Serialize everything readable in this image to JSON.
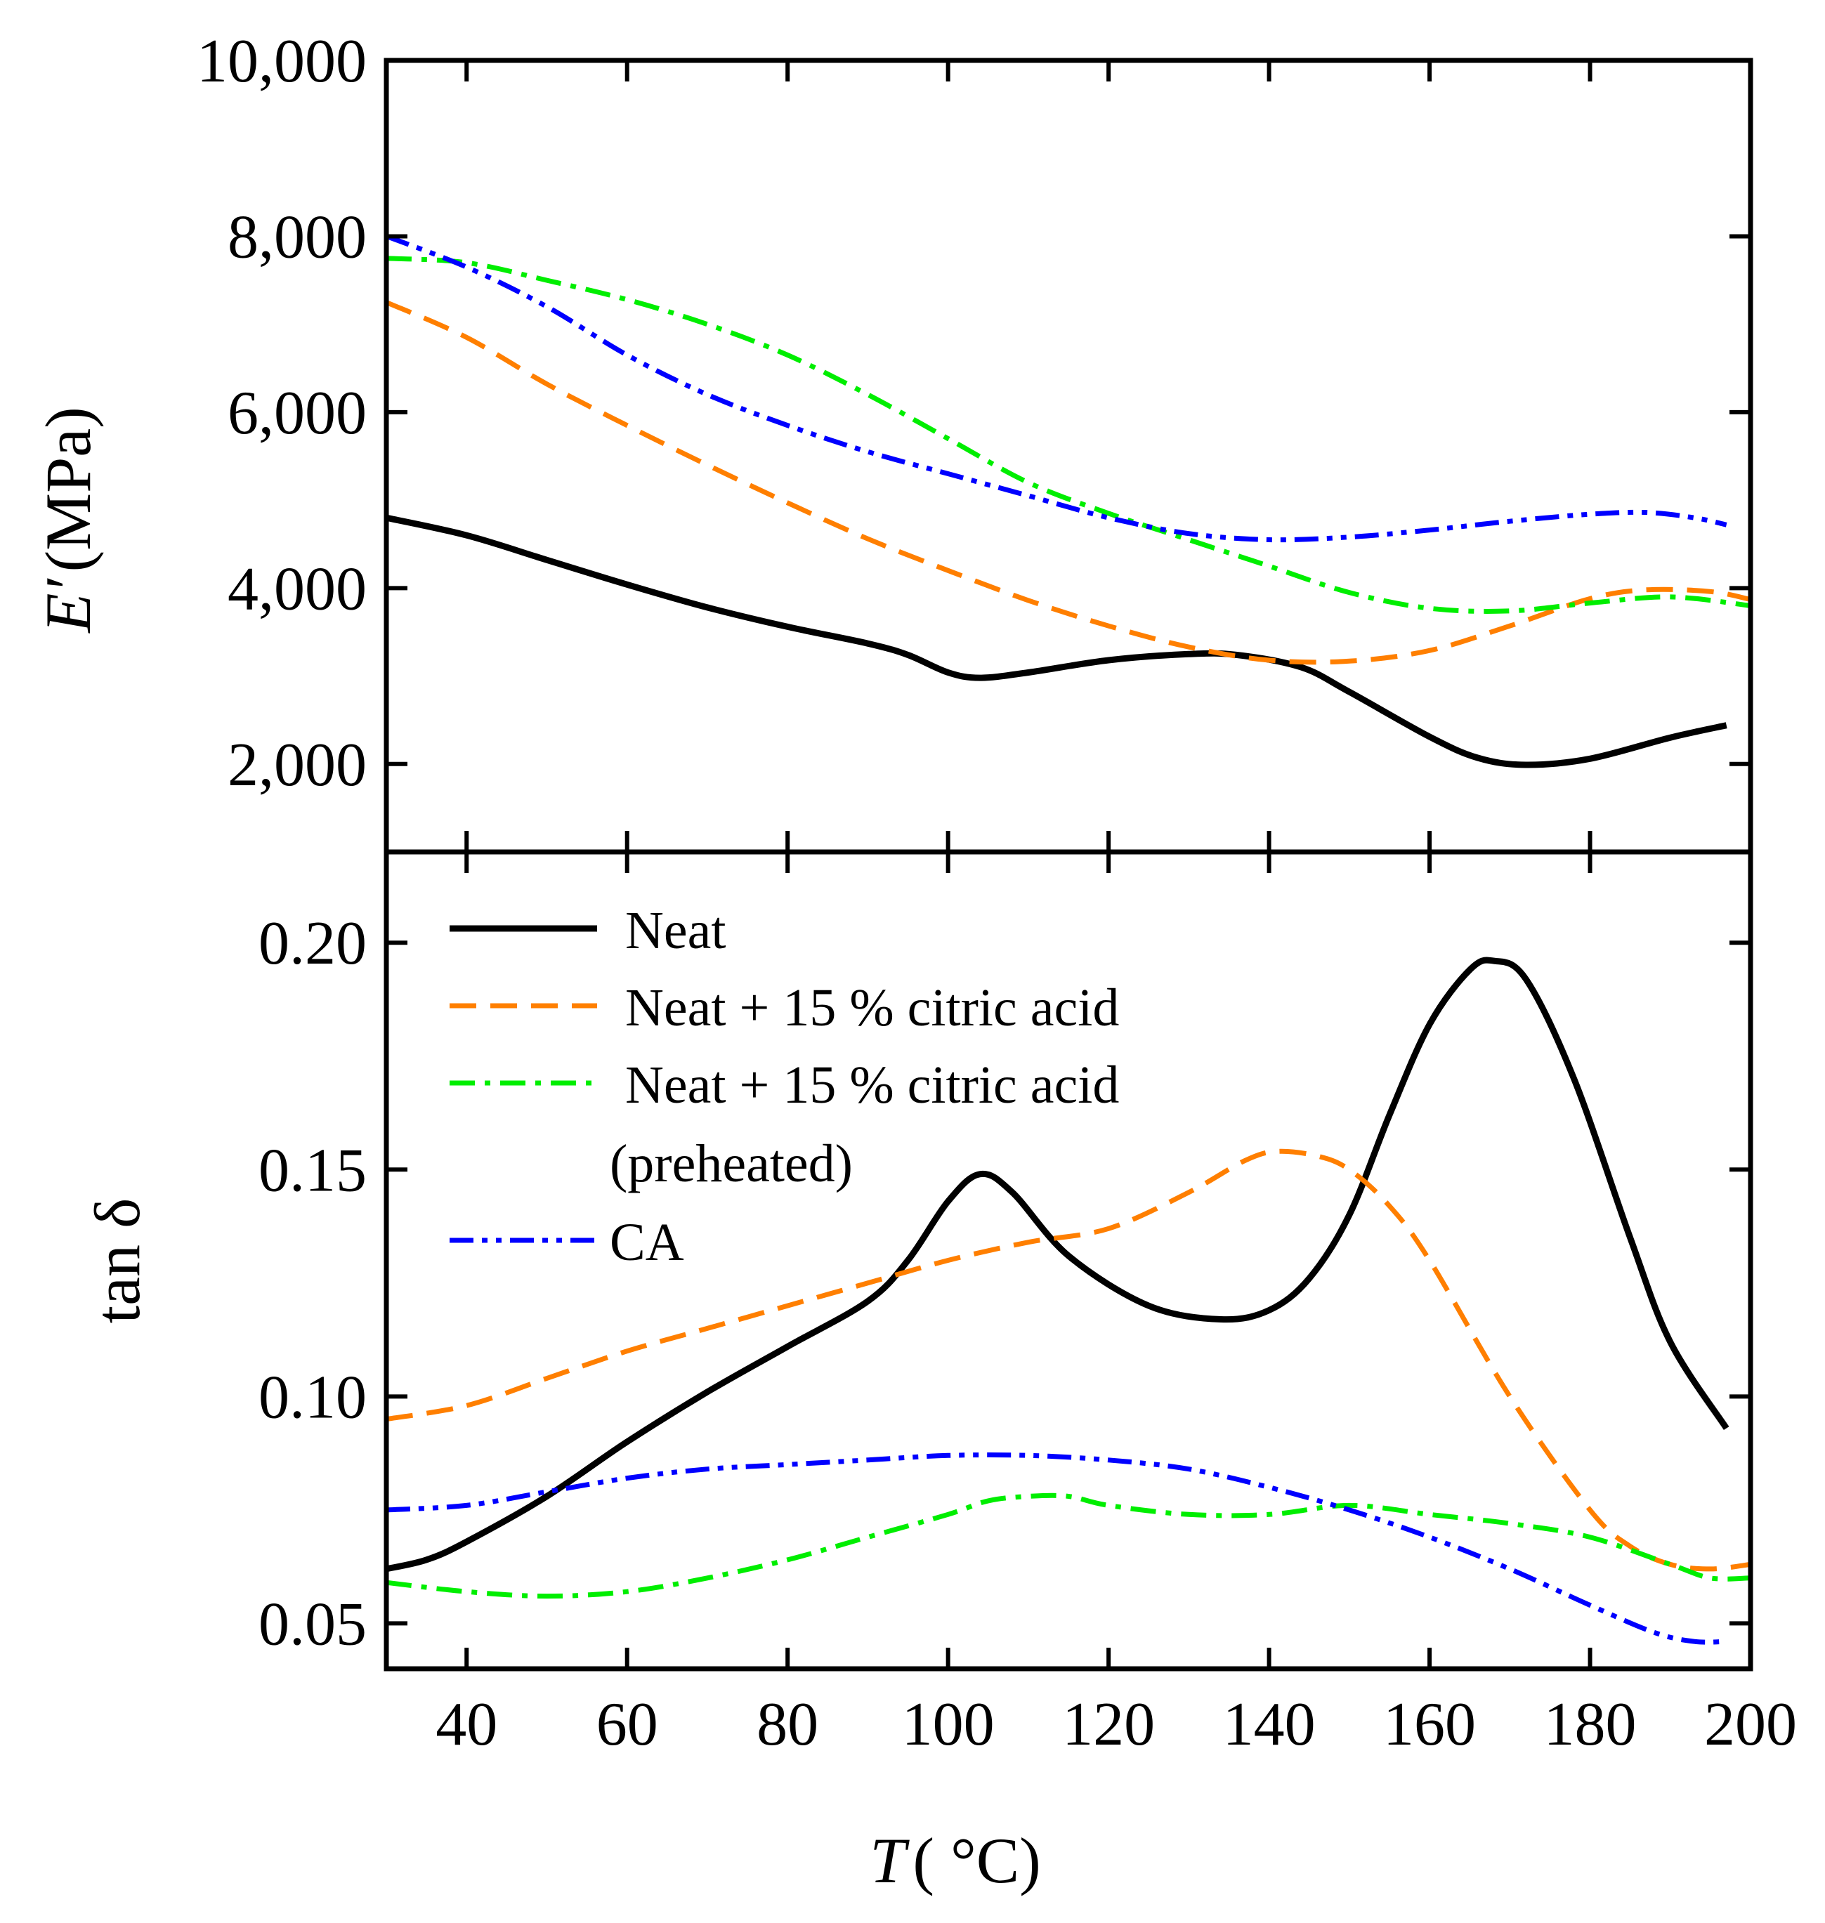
{
  "chart_data": [
    {
      "type": "line",
      "panel": "top",
      "ylabel": "E′ (MPa)",
      "ylabel_symbol": "E′",
      "ylabel_unit": "(MPa)",
      "xlim": [
        30,
        200
      ],
      "ylim": [
        1000,
        10000
      ],
      "yticks": [
        2000,
        4000,
        6000,
        8000,
        10000
      ],
      "ytick_labels": [
        "2,000",
        "4,000",
        "6,000",
        "8,000",
        "10,000"
      ],
      "grid": false,
      "series": [
        {
          "name": "Neat",
          "color": "#000000",
          "style": "solid",
          "x": [
            30,
            40,
            50,
            60,
            70,
            80,
            90,
            95,
            100,
            104,
            110,
            120,
            130,
            136,
            144,
            150,
            160,
            166,
            172,
            180,
            190,
            197
          ],
          "y": [
            4800,
            4600,
            4320,
            4040,
            3780,
            3560,
            3370,
            3240,
            3040,
            2980,
            3040,
            3180,
            3250,
            3240,
            3100,
            2820,
            2310,
            2070,
            1990,
            2060,
            2300,
            2440
          ]
        },
        {
          "name": "Neat + 15 % citric acid",
          "color": "#ff7f00",
          "style": "dashed",
          "x": [
            30,
            40,
            50,
            60,
            70,
            80,
            90,
            100,
            110,
            120,
            130,
            140,
            150,
            160,
            170,
            180,
            187,
            195,
            200
          ],
          "y": [
            7250,
            6850,
            6320,
            5850,
            5400,
            4970,
            4560,
            4200,
            3860,
            3570,
            3330,
            3180,
            3170,
            3290,
            3570,
            3880,
            3980,
            3960,
            3870
          ]
        },
        {
          "name": "Neat + 15 % citric acid (preheated)",
          "color": "#00ee00",
          "style": "dash-dot",
          "x": [
            30,
            40,
            50,
            60,
            70,
            80,
            90,
            100,
            110,
            120,
            130,
            140,
            150,
            160,
            170,
            180,
            190,
            200
          ],
          "y": [
            7750,
            7700,
            7500,
            7280,
            7000,
            6650,
            6200,
            5700,
            5200,
            4850,
            4550,
            4250,
            3950,
            3770,
            3740,
            3830,
            3900,
            3800
          ]
        },
        {
          "name": "CA",
          "color": "#0000ff",
          "style": "dash-dot-dot",
          "x": [
            30,
            40,
            50,
            60,
            70,
            80,
            90,
            100,
            110,
            120,
            130,
            140,
            150,
            160,
            170,
            180,
            187,
            193,
            197
          ],
          "y": [
            8000,
            7650,
            7200,
            6650,
            6200,
            5850,
            5550,
            5300,
            5050,
            4800,
            4620,
            4550,
            4580,
            4660,
            4760,
            4840,
            4860,
            4800,
            4720
          ]
        }
      ]
    },
    {
      "type": "line",
      "panel": "bottom",
      "xlabel": "T ( °C)",
      "xlabel_symbol": "T",
      "xlabel_unit": "( °C)",
      "ylabel": "tan δ",
      "xlim": [
        30,
        200
      ],
      "ylim": [
        0.04,
        0.22
      ],
      "xticks": [
        40,
        60,
        80,
        100,
        120,
        140,
        160,
        180,
        200
      ],
      "xtick_labels": [
        "40",
        "60",
        "80",
        "100",
        "120",
        "140",
        "160",
        "180",
        "200"
      ],
      "yticks": [
        0.05,
        0.1,
        0.15,
        0.2
      ],
      "ytick_labels": [
        "0.05",
        "0.10",
        "0.15",
        "0.20"
      ],
      "grid": false,
      "legend": {
        "position": "top-left",
        "entries": [
          {
            "label": "Neat",
            "style": "solid",
            "color": "#000000"
          },
          {
            "label": "Neat + 15 % citric acid",
            "style": "dashed",
            "color": "#ff7f00"
          },
          {
            "label": "Neat + 15 % citric acid",
            "label_line2": "(preheated)",
            "style": "dash-dot",
            "color": "#00ee00"
          },
          {
            "label": "CA",
            "style": "dash-dot-dot",
            "color": "#0000ff"
          }
        ]
      },
      "series": [
        {
          "name": "Neat",
          "color": "#000000",
          "style": "solid",
          "x": [
            30,
            35,
            40,
            50,
            60,
            70,
            80,
            90,
            95,
            100,
            104,
            108,
            115,
            125,
            134,
            140,
            145,
            150,
            155,
            160,
            165,
            168,
            172,
            178,
            185,
            190,
            197
          ],
          "y": [
            0.062,
            0.064,
            0.068,
            0.078,
            0.09,
            0.101,
            0.111,
            0.121,
            0.13,
            0.143,
            0.149,
            0.145,
            0.131,
            0.12,
            0.117,
            0.119,
            0.126,
            0.14,
            0.162,
            0.182,
            0.194,
            0.196,
            0.192,
            0.17,
            0.135,
            0.112,
            0.093
          ]
        },
        {
          "name": "Neat + 15 % citric acid",
          "color": "#ff7f00",
          "style": "dashed",
          "x": [
            30,
            40,
            50,
            60,
            70,
            80,
            90,
            100,
            110,
            120,
            130,
            137,
            141,
            146,
            150,
            155,
            160,
            170,
            180,
            185,
            190,
            195,
            200
          ],
          "y": [
            0.095,
            0.098,
            0.104,
            0.11,
            0.115,
            0.12,
            0.125,
            0.13,
            0.134,
            0.137,
            0.145,
            0.152,
            0.154,
            0.153,
            0.15,
            0.142,
            0.13,
            0.1,
            0.075,
            0.067,
            0.063,
            0.062,
            0.063
          ]
        },
        {
          "name": "Neat + 15 % citric acid (preheated)",
          "color": "#00ee00",
          "style": "dash-dot",
          "x": [
            30,
            40,
            50,
            60,
            70,
            80,
            90,
            100,
            105,
            110,
            115,
            120,
            130,
            140,
            150,
            160,
            170,
            180,
            190,
            195,
            200
          ],
          "y": [
            0.059,
            0.057,
            0.056,
            0.057,
            0.06,
            0.064,
            0.069,
            0.074,
            0.077,
            0.078,
            0.078,
            0.076,
            0.074,
            0.074,
            0.076,
            0.074,
            0.072,
            0.069,
            0.063,
            0.06,
            0.06
          ]
        },
        {
          "name": "CA",
          "color": "#0000ff",
          "style": "dash-dot-dot",
          "x": [
            30,
            40,
            50,
            60,
            70,
            80,
            90,
            100,
            110,
            120,
            130,
            140,
            150,
            160,
            170,
            180,
            188,
            193,
            197
          ],
          "y": [
            0.075,
            0.076,
            0.079,
            0.082,
            0.084,
            0.085,
            0.086,
            0.087,
            0.087,
            0.086,
            0.084,
            0.08,
            0.075,
            0.069,
            0.062,
            0.054,
            0.048,
            0.046,
            0.046
          ]
        }
      ]
    }
  ]
}
